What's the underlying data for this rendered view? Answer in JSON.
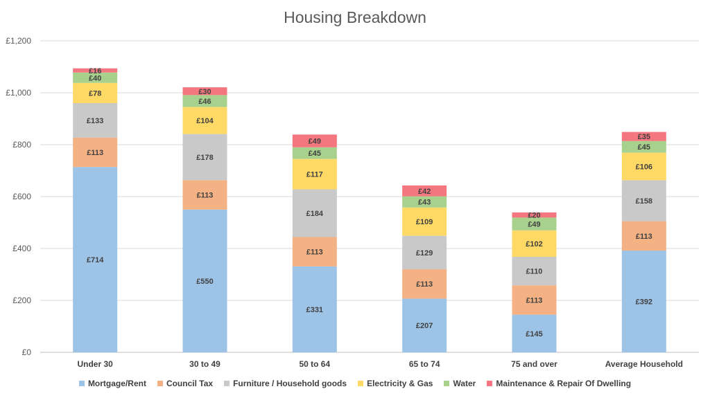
{
  "chart_data": {
    "type": "bar",
    "stacked": true,
    "title": "Housing Breakdown",
    "xlabel": "",
    "ylabel": "",
    "ylim": [
      0,
      1200
    ],
    "yticks": [
      "£0",
      "£200",
      "£400",
      "£600",
      "£800",
      "£1,000",
      "£1,200"
    ],
    "ytick_values": [
      0,
      200,
      400,
      600,
      800,
      1000,
      1200
    ],
    "grid": true,
    "legend_position": "bottom",
    "value_prefix": "£",
    "categories": [
      "Under 30",
      "30 to 49",
      "50 to 64",
      "65 to 74",
      "75 and over",
      "Average Household"
    ],
    "series": [
      {
        "name": "Mortgage/Rent",
        "color": "#9DC3E6",
        "values": [
          714,
          550,
          331,
          207,
          145,
          392
        ]
      },
      {
        "name": "Council Tax",
        "color": "#F4B183",
        "values": [
          113,
          113,
          113,
          113,
          113,
          113
        ]
      },
      {
        "name": "Furniture / Household goods",
        "color": "#C9C9C9",
        "values": [
          133,
          178,
          184,
          129,
          110,
          158
        ]
      },
      {
        "name": "Electricity & Gas",
        "color": "#FFD966",
        "values": [
          78,
          104,
          117,
          109,
          102,
          106
        ]
      },
      {
        "name": "Water",
        "color": "#A9D18E",
        "values": [
          40,
          46,
          45,
          43,
          49,
          45
        ]
      },
      {
        "name": "Maintenance & Repair Of Dwelling",
        "color": "#F4777F",
        "values": [
          16,
          30,
          49,
          42,
          20,
          35
        ]
      }
    ]
  }
}
